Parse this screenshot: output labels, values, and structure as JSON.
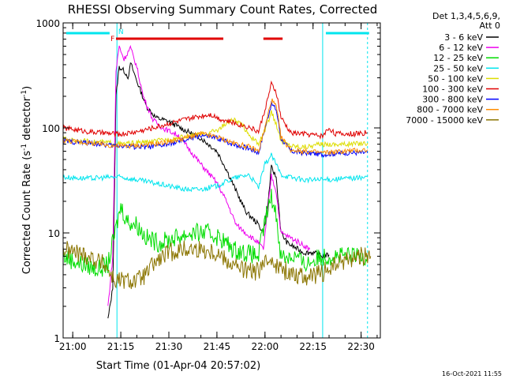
{
  "chart_data": {
    "type": "line",
    "title": "RHESSI Observing Summary Count Rates, Corrected",
    "xlabel": "Start Time (01-Apr-04 20:57:02)",
    "ylabel_parts": {
      "base": "Corrected Count Rate (s",
      "sup1": "-1",
      "mid": " detector",
      "sup2": "-1",
      "end": ")"
    },
    "yscale": "log",
    "ylim": [
      1,
      1000
    ],
    "xlim_minutes": [
      -3,
      96
    ],
    "x_ticks": [
      {
        "label": "21:00",
        "minutes": 0
      },
      {
        "label": "21:15",
        "minutes": 15
      },
      {
        "label": "21:30",
        "minutes": 30
      },
      {
        "label": "21:45",
        "minutes": 45
      },
      {
        "label": "22:00",
        "minutes": 60
      },
      {
        "label": "22:15",
        "minutes": 75
      },
      {
        "label": "22:30",
        "minutes": 90
      }
    ],
    "y_ticks": [
      {
        "label": "1",
        "value": 1
      },
      {
        "label": "10",
        "value": 10
      },
      {
        "label": "100",
        "value": 100
      },
      {
        "label": "1000",
        "value": 1000
      }
    ],
    "legend_header": [
      "Det 1,3,4,5,6,9,",
      "Att 0"
    ],
    "legend_position": "right",
    "timestamp": "16-Oct-2021 11:55",
    "flags": {
      "night_marker": {
        "label": "N",
        "color": "#00e5ee"
      },
      "flare_marker": {
        "label": "F",
        "color": "#e00000"
      }
    },
    "series": [
      {
        "name": "3 - 6 keV",
        "color": "#000000",
        "points": [
          [
            11,
            1.5
          ],
          [
            12.5,
            3
          ],
          [
            13.5,
            200
          ],
          [
            14.5,
            380
          ],
          [
            16,
            350
          ],
          [
            17.5,
            300
          ],
          [
            18,
            420
          ],
          [
            20,
            280
          ],
          [
            23,
            160
          ],
          [
            26,
            125
          ],
          [
            30,
            115
          ],
          [
            35,
            95
          ],
          [
            40,
            80
          ],
          [
            45,
            60
          ],
          [
            48,
            40
          ],
          [
            51,
            25
          ],
          [
            54,
            16
          ],
          [
            58,
            12
          ],
          [
            59.5,
            10
          ],
          [
            61,
            20
          ],
          [
            62,
            42
          ],
          [
            63.5,
            34
          ],
          [
            65,
            10
          ],
          [
            67,
            8
          ],
          [
            72,
            6.5
          ],
          [
            75,
            6.5
          ],
          [
            78,
            6
          ],
          [
            80,
            6.2
          ]
        ]
      },
      {
        "name": "6 - 12 keV",
        "color": "#ee00ee",
        "points": [
          [
            11,
            2
          ],
          [
            12.5,
            6
          ],
          [
            13.5,
            350
          ],
          [
            14.5,
            600
          ],
          [
            16,
            450
          ],
          [
            18,
            580
          ],
          [
            20,
            380
          ],
          [
            22,
            200
          ],
          [
            25,
            120
          ],
          [
            28,
            100
          ],
          [
            33,
            85
          ],
          [
            40,
            45
          ],
          [
            45,
            30
          ],
          [
            48,
            20
          ],
          [
            51,
            12
          ],
          [
            54,
            10
          ],
          [
            58,
            8
          ],
          [
            59.5,
            7
          ],
          [
            61,
            18
          ],
          [
            62,
            35
          ],
          [
            63.5,
            25
          ],
          [
            65,
            10
          ],
          [
            68,
            9
          ],
          [
            71,
            8
          ],
          [
            74,
            7
          ]
        ]
      },
      {
        "name": "12 - 25 keV",
        "color": "#00dd00",
        "points": [
          [
            -3,
            6
          ],
          [
            3,
            5
          ],
          [
            8,
            4.5
          ],
          [
            11,
            5
          ],
          [
            13.5,
            11
          ],
          [
            15,
            18
          ],
          [
            17,
            13
          ],
          [
            20,
            12
          ],
          [
            23,
            9
          ],
          [
            27,
            8
          ],
          [
            32,
            9
          ],
          [
            37,
            10
          ],
          [
            42,
            10
          ],
          [
            46,
            9
          ],
          [
            50,
            7
          ],
          [
            54,
            6.5
          ],
          [
            58,
            6
          ],
          [
            60,
            13
          ],
          [
            62,
            22
          ],
          [
            63.5,
            15
          ],
          [
            65,
            6
          ],
          [
            70,
            6
          ],
          [
            72,
            5
          ],
          [
            78,
            6
          ],
          [
            85,
            6
          ],
          [
            92,
            6
          ]
        ]
      },
      {
        "name": "25 - 50 keV",
        "color": "#00e5ee",
        "points": [
          [
            -3,
            34
          ],
          [
            5,
            33
          ],
          [
            12,
            34
          ],
          [
            15,
            34
          ],
          [
            20,
            32
          ],
          [
            25,
            30
          ],
          [
            30,
            28
          ],
          [
            35,
            26
          ],
          [
            40,
            26
          ],
          [
            45,
            28
          ],
          [
            50,
            33
          ],
          [
            55,
            36
          ],
          [
            58,
            27
          ],
          [
            60,
            45
          ],
          [
            62,
            55
          ],
          [
            63.5,
            45
          ],
          [
            65,
            36
          ],
          [
            68,
            34
          ],
          [
            72,
            32
          ],
          [
            78,
            32
          ],
          [
            85,
            33
          ],
          [
            92,
            34
          ]
        ]
      },
      {
        "name": "50 - 100 keV",
        "color": "#dddd00",
        "points": [
          [
            -3,
            78
          ],
          [
            5,
            74
          ],
          [
            12,
            72
          ],
          [
            15,
            70
          ],
          [
            20,
            72
          ],
          [
            25,
            74
          ],
          [
            30,
            78
          ],
          [
            35,
            82
          ],
          [
            40,
            86
          ],
          [
            45,
            95
          ],
          [
            48,
            110
          ],
          [
            50,
            120
          ],
          [
            53,
            105
          ],
          [
            56,
            80
          ],
          [
            58,
            70
          ],
          [
            60,
            95
          ],
          [
            62,
            140
          ],
          [
            63.5,
            110
          ],
          [
            65,
            75
          ],
          [
            68,
            68
          ],
          [
            72,
            66
          ],
          [
            78,
            70
          ],
          [
            85,
            70
          ],
          [
            92,
            72
          ]
        ]
      },
      {
        "name": "100 - 300 keV",
        "color": "#e00000",
        "points": [
          [
            -3,
            100
          ],
          [
            5,
            92
          ],
          [
            12,
            88
          ],
          [
            15,
            87
          ],
          [
            20,
            92
          ],
          [
            25,
            100
          ],
          [
            30,
            110
          ],
          [
            35,
            120
          ],
          [
            40,
            130
          ],
          [
            43,
            135
          ],
          [
            46,
            122
          ],
          [
            50,
            112
          ],
          [
            55,
            102
          ],
          [
            58,
            92
          ],
          [
            60,
            150
          ],
          [
            62,
            260
          ],
          [
            63.5,
            220
          ],
          [
            65,
            125
          ],
          [
            68,
            90
          ],
          [
            72,
            88
          ],
          [
            78,
            84
          ],
          [
            80,
            100
          ],
          [
            82,
            88
          ],
          [
            88,
            88
          ],
          [
            92,
            90
          ]
        ]
      },
      {
        "name": "300 - 800 keV",
        "color": "#0000ff",
        "points": [
          [
            -3,
            75
          ],
          [
            5,
            72
          ],
          [
            12,
            68
          ],
          [
            15,
            68
          ],
          [
            20,
            66
          ],
          [
            25,
            66
          ],
          [
            30,
            70
          ],
          [
            35,
            76
          ],
          [
            40,
            85
          ],
          [
            45,
            80
          ],
          [
            50,
            70
          ],
          [
            55,
            64
          ],
          [
            58,
            58
          ],
          [
            60,
            100
          ],
          [
            62,
            170
          ],
          [
            63.5,
            150
          ],
          [
            65,
            80
          ],
          [
            68,
            60
          ],
          [
            72,
            58
          ],
          [
            78,
            56
          ],
          [
            85,
            58
          ],
          [
            92,
            58
          ]
        ]
      },
      {
        "name": "800 - 7000 keV",
        "color": "#ff8c00",
        "points": [
          [
            -3,
            76
          ],
          [
            5,
            72
          ],
          [
            12,
            68
          ],
          [
            15,
            67
          ],
          [
            20,
            68
          ],
          [
            25,
            70
          ],
          [
            30,
            74
          ],
          [
            35,
            80
          ],
          [
            40,
            88
          ],
          [
            45,
            82
          ],
          [
            50,
            72
          ],
          [
            55,
            66
          ],
          [
            58,
            60
          ],
          [
            60,
            100
          ],
          [
            62,
            185
          ],
          [
            63.5,
            160
          ],
          [
            65,
            82
          ],
          [
            68,
            62
          ],
          [
            72,
            60
          ],
          [
            78,
            58
          ],
          [
            85,
            60
          ],
          [
            92,
            62
          ]
        ]
      },
      {
        "name": "7000 - 15000 keV",
        "color": "#8b7500",
        "points": [
          [
            -3,
            7
          ],
          [
            5,
            6
          ],
          [
            10,
            5
          ],
          [
            12,
            4
          ],
          [
            13,
            3.5
          ],
          [
            15,
            3.5
          ],
          [
            20,
            3.5
          ],
          [
            23,
            4
          ],
          [
            25,
            5
          ],
          [
            30,
            6.5
          ],
          [
            35,
            7
          ],
          [
            40,
            7
          ],
          [
            45,
            6.5
          ],
          [
            50,
            5
          ],
          [
            53,
            4.5
          ],
          [
            57,
            4.2
          ],
          [
            60,
            5
          ],
          [
            62,
            6
          ],
          [
            63.5,
            5
          ],
          [
            65,
            4.5
          ],
          [
            70,
            4
          ],
          [
            75,
            3.8
          ],
          [
            80,
            4.5
          ],
          [
            85,
            5.5
          ],
          [
            90,
            6
          ],
          [
            93,
            6
          ]
        ]
      }
    ]
  }
}
